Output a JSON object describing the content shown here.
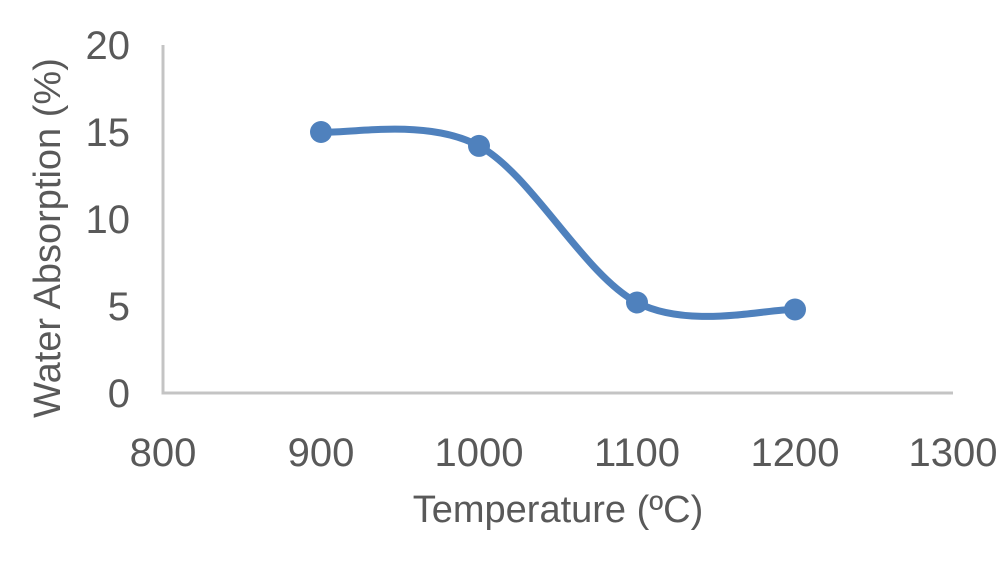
{
  "chart_data": {
    "type": "line",
    "title": "",
    "xlabel": "Temperature (ºC)",
    "ylabel": "Water Absorption (%)",
    "series": [
      {
        "name": "Water Absorption",
        "x": [
          900,
          1000,
          1100,
          1200
        ],
        "y": [
          15.0,
          14.2,
          5.2,
          4.8
        ]
      }
    ],
    "xlim": [
      800,
      1300
    ],
    "ylim": [
      0,
      20
    ],
    "xticks": [
      800,
      900,
      1000,
      1100,
      1200,
      1300
    ],
    "yticks": [
      0,
      5,
      10,
      15,
      20
    ],
    "smooth": true,
    "markers": true,
    "grid": false,
    "legend": false,
    "colors": {
      "line": "#4F81BD",
      "axis": "#C4C4C4",
      "text": "#595959",
      "background": "#FFFFFF"
    }
  }
}
